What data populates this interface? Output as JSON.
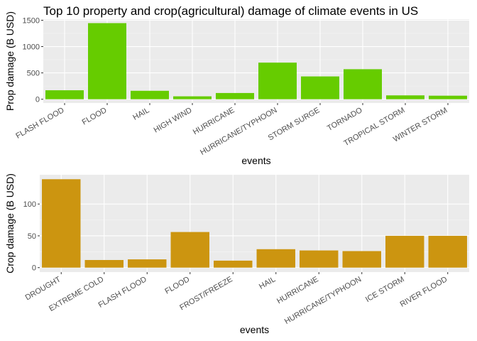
{
  "title": "Top 10 property and crop(agricultural) damage of climate events in US",
  "chart_data": [
    {
      "type": "bar",
      "categories": [
        "FLASH FLOOD",
        "FLOOD",
        "HAIL",
        "HIGH WIND",
        "HURRICANE",
        "HURRICANE/TYPHOON",
        "STORM SURGE",
        "TORNADO",
        "TROPICAL STORM",
        "WINTER STORM"
      ],
      "values": [
        170,
        1445,
        160,
        55,
        118,
        695,
        433,
        570,
        73,
        67
      ],
      "xlabel": "events",
      "ylabel": "Prop damage (B USD)",
      "yticks": [
        0,
        500,
        1000,
        1500
      ],
      "ylim": [
        -72,
        1520
      ],
      "bar_color": "#66cc00",
      "grid": true
    },
    {
      "type": "bar",
      "categories": [
        "DROUGHT",
        "EXTREME COLD",
        "FLASH FLOOD",
        "FLOOD",
        "FROST/FREEZE",
        "HAIL",
        "HURRICANE",
        "HURRICANE/TYPHOON",
        "ICE STORM",
        "RIVER FLOOD"
      ],
      "values": [
        139,
        12,
        13,
        56,
        11,
        29,
        27,
        26,
        50,
        50
      ],
      "xlabel": "events",
      "ylabel": "Crop damage (B USD)",
      "yticks": [
        0,
        50,
        100
      ],
      "ylim": [
        -7,
        146
      ],
      "bar_color": "#cc9510",
      "grid": true
    }
  ]
}
